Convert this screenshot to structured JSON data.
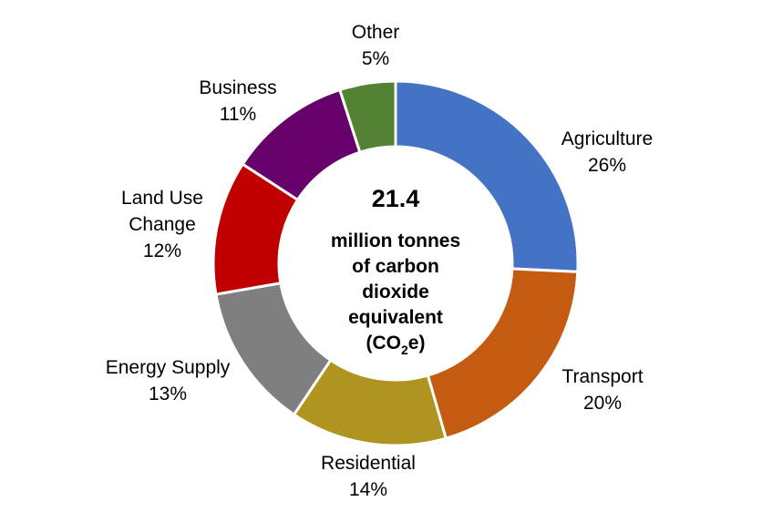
{
  "chart_data": {
    "type": "pie",
    "variant": "donut",
    "start_angle_deg": 0,
    "direction": "clockwise",
    "center": {
      "value": "21.4",
      "lines": [
        "million tonnes",
        "of carbon",
        "dioxide",
        "equivalent"
      ],
      "formula": {
        "open": "(CO",
        "subscript": "2",
        "close": "e)"
      }
    },
    "slices": [
      {
        "name": "Agriculture",
        "label_lines": [
          "Agriculture"
        ],
        "value": 26,
        "display": "26%",
        "color": "#4472C4"
      },
      {
        "name": "Transport",
        "label_lines": [
          "Transport"
        ],
        "value": 20,
        "display": "20%",
        "color": "#C55A11"
      },
      {
        "name": "Residential",
        "label_lines": [
          "Residential"
        ],
        "value": 14,
        "display": "14%",
        "color": "#AF9520"
      },
      {
        "name": "Energy Supply",
        "label_lines": [
          "Energy Supply"
        ],
        "value": 13,
        "display": "13%",
        "color": "#7F7F7F"
      },
      {
        "name": "Land Use Change",
        "label_lines": [
          "Land Use",
          "Change"
        ],
        "value": 12,
        "display": "12%",
        "color": "#C00000"
      },
      {
        "name": "Business",
        "label_lines": [
          "Business"
        ],
        "value": 11,
        "display": "11%",
        "color": "#66006B"
      },
      {
        "name": "Other",
        "label_lines": [
          "Other"
        ],
        "value": 5,
        "display": "5%",
        "color": "#548235"
      }
    ]
  }
}
